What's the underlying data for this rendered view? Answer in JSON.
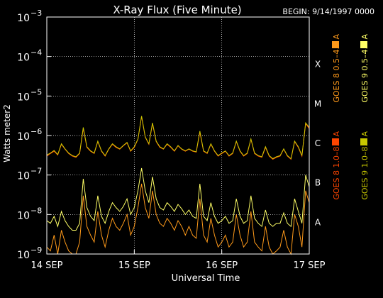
{
  "chart_data": {
    "type": "line",
    "title": "X-Ray Flux (Five Minute)",
    "begin_label": "BEGIN: 9/14/1997 0000",
    "xlabel": "Universal Time",
    "ylabel": "Watts meter2",
    "yscale": "log",
    "ylim": [
      1e-09,
      0.001
    ],
    "xlim": [
      0,
      72
    ],
    "x_unit": "hours since 9/14/1997 0000",
    "x_ticks": [
      {
        "x": 0,
        "label": "14 SEP"
      },
      {
        "x": 24,
        "label": "15 SEP"
      },
      {
        "x": 48,
        "label": "16 SEP"
      },
      {
        "x": 72,
        "label": "17 SEP"
      }
    ],
    "y_ticks": [
      {
        "exp": -9,
        "base": "10",
        "sup": "−9"
      },
      {
        "exp": -8,
        "base": "10",
        "sup": "−8"
      },
      {
        "exp": -7,
        "base": "10",
        "sup": "−7"
      },
      {
        "exp": -6,
        "base": "10",
        "sup": "−6"
      },
      {
        "exp": -5,
        "base": "10",
        "sup": "−5"
      },
      {
        "exp": -4,
        "base": "10",
        "sup": "−4"
      },
      {
        "exp": -3,
        "base": "10",
        "sup": "−3"
      }
    ],
    "flare_classes": [
      {
        "label": "X",
        "exp": -4
      },
      {
        "label": "M",
        "exp": -5
      },
      {
        "label": "C",
        "exp": -6
      },
      {
        "label": "B",
        "exp": -7
      },
      {
        "label": "A",
        "exp": -8
      }
    ],
    "grid": {
      "horizontal_dotted": true,
      "vertical_dotted_at_days": true
    },
    "series": [
      {
        "name": "GOES 8 1.0–8.0 A",
        "color": "#ff4500",
        "x": [
          0,
          1,
          2,
          3,
          4,
          5,
          6,
          7,
          8,
          9,
          10,
          11,
          12,
          13,
          14,
          15,
          16,
          17,
          18,
          19,
          20,
          21,
          22,
          23,
          24,
          25,
          26,
          27,
          28,
          29,
          30,
          31,
          32,
          33,
          34,
          35,
          36,
          37,
          38,
          39,
          40,
          41,
          42,
          43,
          44,
          45,
          46,
          47,
          48,
          49,
          50,
          51,
          52,
          53,
          54,
          55,
          56,
          57,
          58,
          59,
          60,
          61,
          62,
          63,
          64,
          65,
          66,
          67,
          68,
          69,
          70,
          71,
          72
        ],
        "y": [
          3e-07,
          3.5e-07,
          4e-07,
          3.2e-07,
          6e-07,
          4.5e-07,
          3.5e-07,
          3e-07,
          2.8e-07,
          3.5e-07,
          1.5e-06,
          5e-07,
          4e-07,
          3.5e-07,
          7e-07,
          4e-07,
          3e-07,
          4.5e-07,
          6e-07,
          5e-07,
          4.5e-07,
          5.5e-07,
          6.5e-07,
          4e-07,
          5e-07,
          8e-07,
          3e-06,
          9e-07,
          6e-07,
          2e-06,
          7e-07,
          5e-07,
          4.5e-07,
          6e-07,
          5e-07,
          4e-07,
          5.5e-07,
          4.5e-07,
          4e-07,
          4.5e-07,
          4e-07,
          3.8e-07,
          1.2e-06,
          4e-07,
          3.5e-07,
          6e-07,
          4e-07,
          3e-07,
          3.5e-07,
          4e-07,
          3e-07,
          3.5e-07,
          7e-07,
          4e-07,
          3e-07,
          3.5e-07,
          8e-07,
          3.5e-07,
          3e-07,
          2.8e-07,
          5e-07,
          3e-07,
          2.5e-07,
          2.8e-07,
          3e-07,
          4.5e-07,
          3e-07,
          2.5e-07,
          7e-07,
          5e-07,
          3e-07,
          2e-06,
          1.5e-06
        ]
      },
      {
        "name": "GOES 8 0.5–4.0 A",
        "color": "#ff9a1a",
        "x": [
          0,
          1,
          2,
          3,
          4,
          5,
          6,
          7,
          8,
          9,
          10,
          11,
          12,
          13,
          14,
          15,
          16,
          17,
          18,
          19,
          20,
          21,
          22,
          23,
          24,
          25,
          26,
          27,
          28,
          29,
          30,
          31,
          32,
          33,
          34,
          35,
          36,
          37,
          38,
          39,
          40,
          41,
          42,
          43,
          44,
          45,
          46,
          47,
          48,
          49,
          50,
          51,
          52,
          53,
          54,
          55,
          56,
          57,
          58,
          59,
          60,
          61,
          62,
          63,
          64,
          65,
          66,
          67,
          68,
          69,
          70,
          71,
          72
        ],
        "y": [
          1.5e-09,
          1.2e-09,
          3e-09,
          1e-09,
          4e-09,
          2e-09,
          1.2e-09,
          1e-09,
          1e-09,
          2e-09,
          3e-08,
          5e-09,
          3e-09,
          2e-09,
          1.2e-08,
          3e-09,
          1.5e-09,
          4e-09,
          8e-09,
          5e-09,
          4e-09,
          6e-09,
          1e-08,
          3e-09,
          5e-09,
          1.5e-08,
          6e-08,
          1.5e-08,
          8e-09,
          4e-08,
          1e-08,
          6e-09,
          5e-09,
          8e-09,
          6e-09,
          4e-09,
          7e-09,
          5e-09,
          3e-09,
          5e-09,
          3e-09,
          2.5e-09,
          2.5e-08,
          3e-09,
          2e-09,
          8e-09,
          3e-09,
          1.5e-09,
          2e-09,
          3e-09,
          1.5e-09,
          2e-09,
          1e-08,
          3e-09,
          1.5e-09,
          2e-09,
          1.2e-08,
          2e-09,
          1.5e-09,
          1.2e-09,
          5e-09,
          1.5e-09,
          1e-09,
          1.2e-09,
          1.5e-09,
          4e-09,
          1.5e-09,
          1e-09,
          1e-08,
          5e-09,
          1.5e-09,
          4e-08,
          2e-08
        ]
      },
      {
        "name": "GOES 9 1.0–8.0 A",
        "color": "#c8c800",
        "x": [
          0,
          1,
          2,
          3,
          4,
          5,
          6,
          7,
          8,
          9,
          10,
          11,
          12,
          13,
          14,
          15,
          16,
          17,
          18,
          19,
          20,
          21,
          22,
          23,
          24,
          25,
          26,
          27,
          28,
          29,
          30,
          31,
          32,
          33,
          34,
          35,
          36,
          37,
          38,
          39,
          40,
          41,
          42,
          43,
          44,
          45,
          46,
          47,
          48,
          49,
          50,
          51,
          52,
          53,
          54,
          55,
          56,
          57,
          58,
          59,
          60,
          61,
          62,
          63,
          64,
          65,
          66,
          67,
          68,
          69,
          70,
          71,
          72
        ],
        "y": [
          3.2e-07,
          3.6e-07,
          4.2e-07,
          3.3e-07,
          6.2e-07,
          4.6e-07,
          3.6e-07,
          3.1e-07,
          2.9e-07,
          3.6e-07,
          1.6e-06,
          5.2e-07,
          4.1e-07,
          3.6e-07,
          7.2e-07,
          4.1e-07,
          3.1e-07,
          4.6e-07,
          6.2e-07,
          5.2e-07,
          4.6e-07,
          5.6e-07,
          6.7e-07,
          4.1e-07,
          5.2e-07,
          8.2e-07,
          3.1e-06,
          9.2e-07,
          6.2e-07,
          2.1e-06,
          7.2e-07,
          5.2e-07,
          4.6e-07,
          6.2e-07,
          5.2e-07,
          4.1e-07,
          5.6e-07,
          4.6e-07,
          4.1e-07,
          4.6e-07,
          4.1e-07,
          3.9e-07,
          1.3e-06,
          4.1e-07,
          3.6e-07,
          6.2e-07,
          4.1e-07,
          3.1e-07,
          3.6e-07,
          4.1e-07,
          3.1e-07,
          3.6e-07,
          7.2e-07,
          4.1e-07,
          3.1e-07,
          3.6e-07,
          8.2e-07,
          3.6e-07,
          3.1e-07,
          2.9e-07,
          5.2e-07,
          3.1e-07,
          2.6e-07,
          2.9e-07,
          3.1e-07,
          4.6e-07,
          3.1e-07,
          2.6e-07,
          7.2e-07,
          5.2e-07,
          3.1e-07,
          2.1e-06,
          1.6e-06
        ]
      },
      {
        "name": "GOES 9 0.5–4.0 A",
        "color": "#ffff66",
        "x": [
          0,
          1,
          2,
          3,
          4,
          5,
          6,
          7,
          8,
          9,
          10,
          11,
          12,
          13,
          14,
          15,
          16,
          17,
          18,
          19,
          20,
          21,
          22,
          23,
          24,
          25,
          26,
          27,
          28,
          29,
          30,
          31,
          32,
          33,
          34,
          35,
          36,
          37,
          38,
          39,
          40,
          41,
          42,
          43,
          44,
          45,
          46,
          47,
          48,
          49,
          50,
          51,
          52,
          53,
          54,
          55,
          56,
          57,
          58,
          59,
          60,
          61,
          62,
          63,
          64,
          65,
          66,
          67,
          68,
          69,
          70,
          71,
          72
        ],
        "y": [
          7e-09,
          6e-09,
          9e-09,
          5e-09,
          1.2e-08,
          7e-09,
          5e-09,
          4e-09,
          4e-09,
          6e-09,
          8e-08,
          1.5e-08,
          9e-09,
          7e-09,
          3e-08,
          9e-09,
          6e-09,
          1.2e-08,
          2e-08,
          1.5e-08,
          1.2e-08,
          1.6e-08,
          2.5e-08,
          1e-08,
          1.5e-08,
          4e-08,
          1.5e-07,
          4e-08,
          2e-08,
          9e-08,
          2.5e-08,
          1.5e-08,
          1.3e-08,
          2e-08,
          1.6e-08,
          1.2e-08,
          1.8e-08,
          1.4e-08,
          1e-08,
          1.3e-08,
          9e-09,
          8e-09,
          6e-08,
          9e-09,
          7e-09,
          2e-08,
          9e-09,
          6e-09,
          7e-09,
          9e-09,
          6e-09,
          7e-09,
          2.5e-08,
          9e-09,
          6e-09,
          7e-09,
          3e-08,
          8e-09,
          6e-09,
          5e-09,
          1.3e-08,
          6e-09,
          5e-09,
          6e-09,
          6e-09,
          1.1e-08,
          6e-09,
          5e-09,
          2.5e-08,
          1.2e-08,
          6e-09,
          1e-07,
          5e-08
        ]
      }
    ],
    "legend_placement": "right, vertical"
  }
}
